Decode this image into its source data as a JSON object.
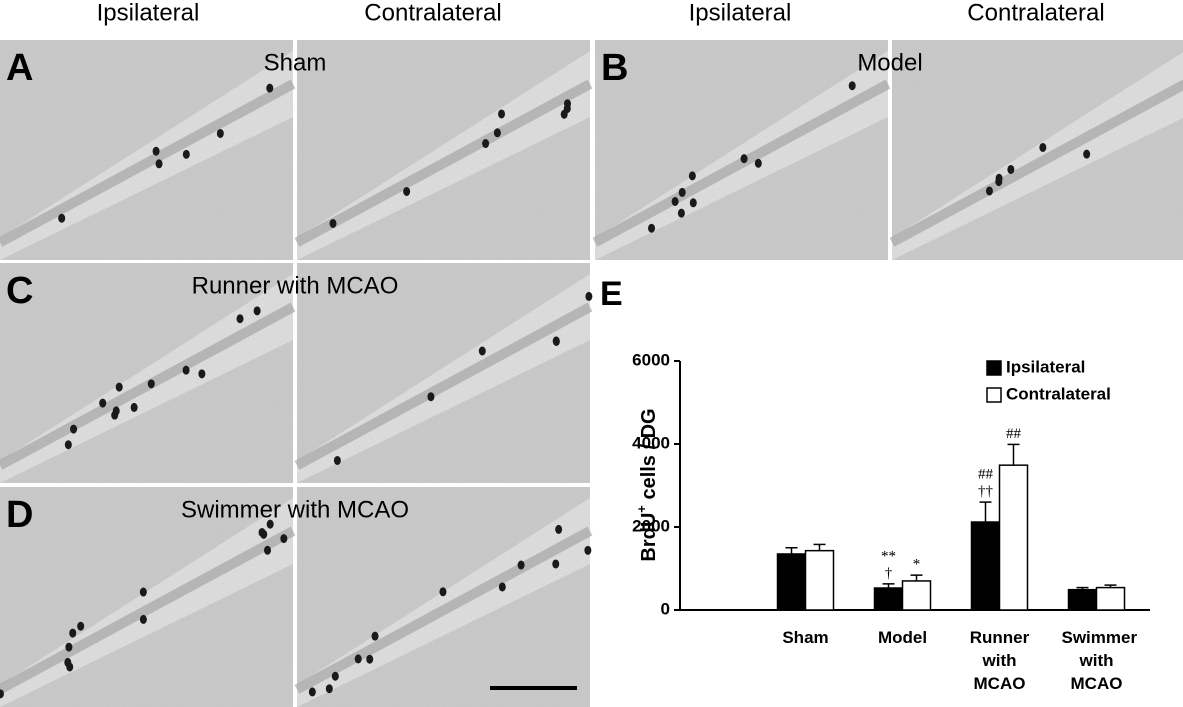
{
  "column_headers": [
    "Ipsilateral",
    "Contralateral",
    "Ipsilateral",
    "Contralateral"
  ],
  "panels": [
    {
      "letter": "A",
      "label": "Sham"
    },
    {
      "letter": "B",
      "label": "Model"
    },
    {
      "letter": "C",
      "label": "Runner with MCAO"
    },
    {
      "letter": "D",
      "label": "Swimmer with MCAO"
    }
  ],
  "chart_letter": "E",
  "chart_data": {
    "type": "bar",
    "ylabel": [
      "BrdU",
      "+",
      " cells / DG"
    ],
    "categories": [
      "Sham",
      "Model",
      "Runner with MCAO",
      "Swimmer with MCAO"
    ],
    "ylim": [
      0,
      6000
    ],
    "yticks": [
      0,
      2000,
      4000,
      6000
    ],
    "legend": "upper right",
    "series": [
      {
        "name": "Ipsilateral",
        "color": "#000000",
        "values": [
          1350,
          530,
          2120,
          490
        ],
        "errors": [
          150,
          100,
          480,
          50
        ],
        "annotations": [
          null,
          [
            "**",
            "†"
          ],
          [
            "##",
            "††"
          ],
          null
        ]
      },
      {
        "name": "Contralateral",
        "color": "#ffffff",
        "values": [
          1430,
          700,
          3490,
          540
        ],
        "errors": [
          150,
          140,
          500,
          60
        ],
        "annotations": [
          null,
          [
            "*"
          ],
          [
            "##"
          ],
          null
        ]
      }
    ]
  }
}
